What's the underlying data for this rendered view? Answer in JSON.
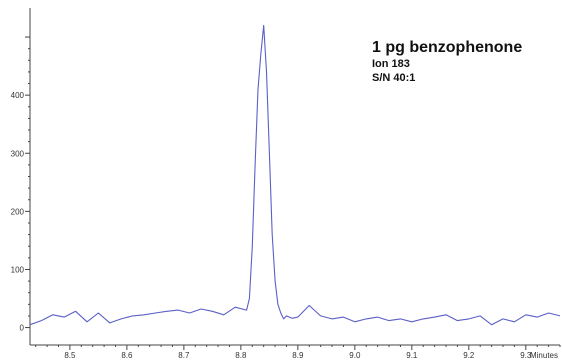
{
  "chart_data": {
    "type": "line",
    "xlabel": "Minutes",
    "ylabel": "",
    "xlim": [
      8.43,
      9.36
    ],
    "ylim": [
      -30,
      550
    ],
    "xticks": [
      8.5,
      8.6,
      8.7,
      8.8,
      8.9,
      9.0,
      9.1,
      9.2,
      9.3
    ],
    "xtick_labels": [
      "8.5",
      "8.6",
      "8.7",
      "8.8",
      "8.9",
      "9.0",
      "9.1",
      "9.2",
      "9.3"
    ],
    "yticks": [
      0,
      100,
      200,
      300,
      400
    ],
    "ytick_labels": [
      "0",
      "100",
      "200",
      "300",
      "400"
    ],
    "grid": false,
    "annotations": [
      "1 pg benzophenone",
      "Ion 183",
      "S/N 40:1"
    ],
    "series": [
      {
        "color": "#5b5fc7",
        "x": [
          8.43,
          8.45,
          8.47,
          8.49,
          8.51,
          8.53,
          8.55,
          8.57,
          8.59,
          8.61,
          8.63,
          8.65,
          8.67,
          8.69,
          8.71,
          8.73,
          8.75,
          8.77,
          8.79,
          8.81,
          8.815,
          8.82,
          8.825,
          8.83,
          8.835,
          8.84,
          8.845,
          8.85,
          8.855,
          8.86,
          8.865,
          8.87,
          8.875,
          8.88,
          8.885,
          8.89,
          8.9,
          8.92,
          8.94,
          8.96,
          8.98,
          9.0,
          9.02,
          9.04,
          9.06,
          9.08,
          9.1,
          9.12,
          9.14,
          9.16,
          9.18,
          9.2,
          9.22,
          9.24,
          9.26,
          9.28,
          9.3,
          9.32,
          9.34,
          9.36
        ],
        "y": [
          5,
          12,
          22,
          18,
          28,
          10,
          25,
          8,
          15,
          20,
          22,
          25,
          28,
          30,
          25,
          32,
          28,
          22,
          35,
          30,
          50,
          140,
          280,
          410,
          470,
          520,
          440,
          300,
          160,
          80,
          40,
          25,
          15,
          20,
          18,
          16,
          18,
          38,
          20,
          15,
          18,
          10,
          15,
          18,
          12,
          15,
          10,
          15,
          18,
          22,
          12,
          15,
          20,
          5,
          15,
          10,
          22,
          18,
          25,
          20
        ]
      }
    ]
  }
}
